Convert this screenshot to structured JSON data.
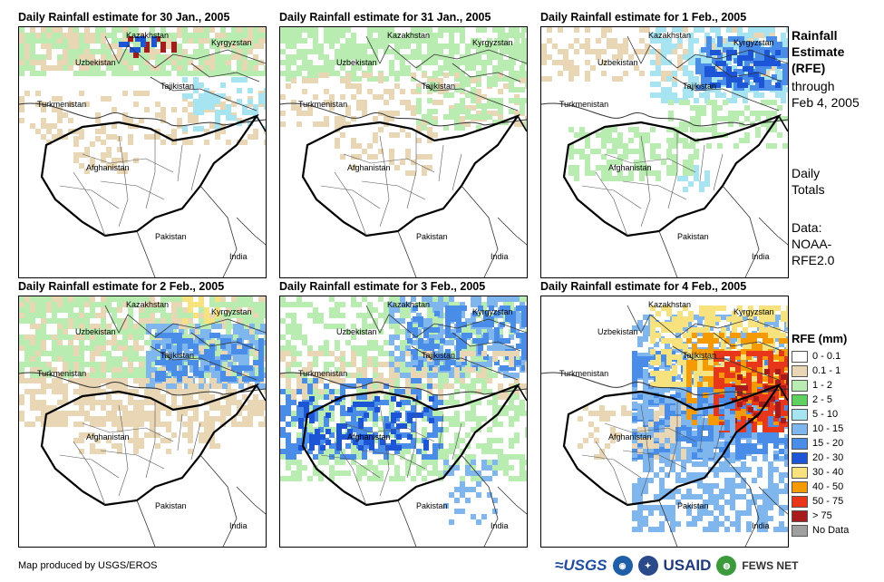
{
  "panels": [
    {
      "title": "Daily Rainfall estimate for 30 Jan., 2005",
      "rain": "p1"
    },
    {
      "title": "Daily Rainfall estimate for 31 Jan., 2005",
      "rain": "p2"
    },
    {
      "title": "Daily Rainfall estimate for 1 Feb., 2005",
      "rain": "p3"
    },
    {
      "title": "Daily Rainfall estimate for 2 Feb., 2005",
      "rain": "p4"
    },
    {
      "title": "Daily Rainfall estimate for 3 Feb., 2005",
      "rain": "p5"
    },
    {
      "title": "Daily Rainfall estimate for 4 Feb., 2005",
      "rain": "p6"
    }
  ],
  "map_labels": {
    "kazakhstan": "Kazakhstan",
    "kyrgyzstan": "Kyrgyzstan",
    "uzbekistan": "Uzbekistan",
    "tajikistan": "Tajikistan",
    "turkmenistan": "Turkmenistan",
    "afghanistan": "Afghanistan",
    "pakistan": "Pakistan",
    "india": "India"
  },
  "side": {
    "title_line1": "Rainfall",
    "title_line2": "Estimate",
    "title_line3": "(RFE)",
    "through": "through",
    "date": "Feb 4, 2005",
    "daily1": "Daily",
    "daily2": "Totals",
    "data1": "Data:",
    "data2": "NOAA-",
    "data3": "RFE2.0"
  },
  "legend": {
    "title": "RFE (mm)",
    "items": [
      {
        "label": "0 - 0.1",
        "color": "#ffffff"
      },
      {
        "label": "0.1 - 1",
        "color": "#e8d6b4"
      },
      {
        "label": "1 - 2",
        "color": "#b9ecb0"
      },
      {
        "label": "2 - 5",
        "color": "#5ed161"
      },
      {
        "label": "5 - 10",
        "color": "#a6e4f2"
      },
      {
        "label": "10 - 15",
        "color": "#80b6ee"
      },
      {
        "label": "15 - 20",
        "color": "#4a8de8"
      },
      {
        "label": "20 - 30",
        "color": "#1c56d6"
      },
      {
        "label": "30 - 40",
        "color": "#f7e27d"
      },
      {
        "label": "40 - 50",
        "color": "#f59a00"
      },
      {
        "label": "50 - 75",
        "color": "#e8361a"
      },
      {
        "label": "> 75",
        "color": "#a81b1b"
      },
      {
        "label": "No Data",
        "color": "#a0a0a0"
      }
    ]
  },
  "footer": {
    "credit": "Map produced by USGS/EROS"
  },
  "logos": {
    "usgs": "≈USGS",
    "usaid": "USAID",
    "fews": "FEWS NET"
  }
}
